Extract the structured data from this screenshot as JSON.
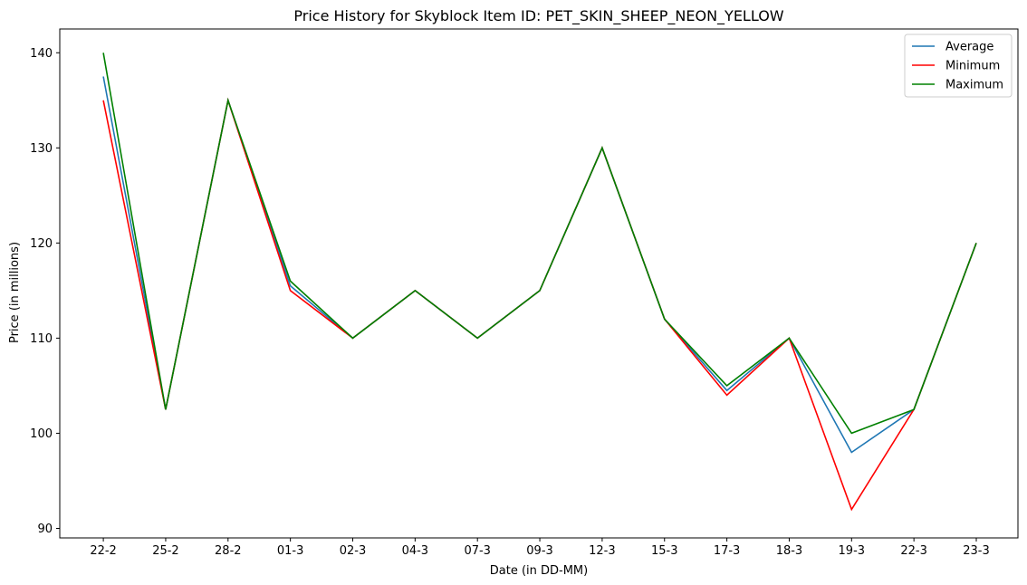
{
  "chart_data": {
    "type": "line",
    "title": "Price History for Skyblock Item ID: PET_SKIN_SHEEP_NEON_YELLOW",
    "xlabel": "Date (in DD-MM)",
    "ylabel": "Price (in millions)",
    "categories": [
      "22-2",
      "25-2",
      "28-2",
      "01-3",
      "02-3",
      "04-3",
      "07-3",
      "09-3",
      "12-3",
      "15-3",
      "17-3",
      "18-3",
      "19-3",
      "22-3",
      "23-3"
    ],
    "ylim": [
      89,
      142.5
    ],
    "yticks": [
      90,
      100,
      110,
      120,
      130,
      140
    ],
    "grid": false,
    "legend_position": "top-right",
    "series": [
      {
        "name": "Average",
        "color": "#1f77b4",
        "values": [
          137.5,
          102.5,
          135,
          115.5,
          110,
          115,
          110,
          115,
          130,
          112,
          104.5,
          110,
          98,
          102.5,
          120
        ]
      },
      {
        "name": "Minimum",
        "color": "#ff0000",
        "values": [
          135,
          102.5,
          135,
          115,
          110,
          115,
          110,
          115,
          130,
          112,
          104,
          110,
          92,
          102.5,
          120
        ]
      },
      {
        "name": "Maximum",
        "color": "#008000",
        "values": [
          140,
          102.5,
          135,
          116,
          110,
          115,
          110,
          115,
          130,
          112,
          105,
          110,
          100,
          102.5,
          120
        ]
      }
    ]
  }
}
